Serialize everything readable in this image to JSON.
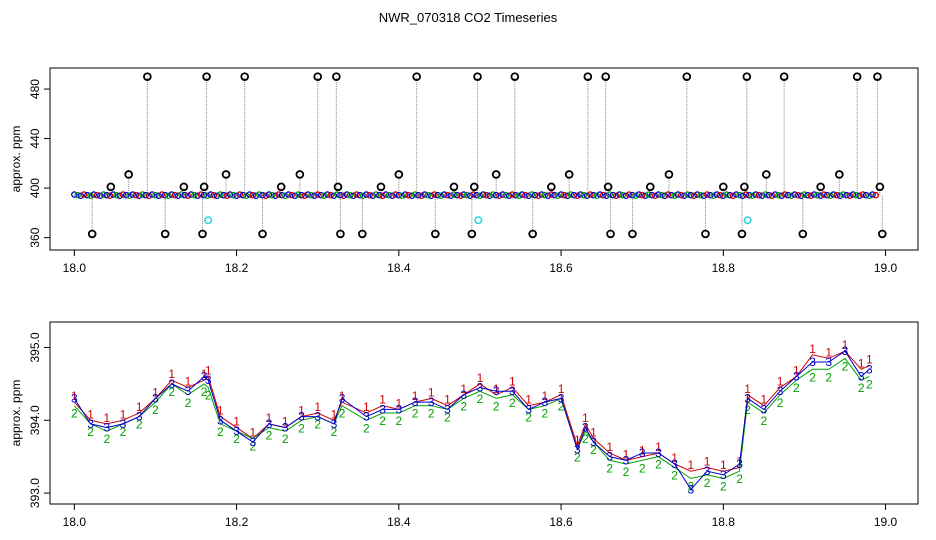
{
  "title": "NWR_070318  CO2 Timeseries",
  "colors": {
    "ch1": "#d00000",
    "ch2": "#00a000",
    "ch3": "#0000c8",
    "outlier": "#000000",
    "flagged": "#30d8e0",
    "trace": "#888888"
  },
  "chart_data": [
    {
      "type": "scatter",
      "ylabel": "approx. ppm",
      "xlim": [
        17.97,
        19.04
      ],
      "ylim": [
        350,
        497
      ],
      "xticks": [
        18.0,
        18.2,
        18.4,
        18.6,
        18.8,
        19.0
      ],
      "xtick_labels": [
        "18.0",
        "18.2",
        "18.4",
        "18.6",
        "18.8",
        "19.0"
      ],
      "yticks": [
        360,
        400,
        440,
        480
      ],
      "ytick_labels": [
        "360",
        "400",
        "440",
        "480"
      ],
      "outliers": [
        {
          "x": 18.022,
          "y": 363
        },
        {
          "x": 18.045,
          "y": 401
        },
        {
          "x": 18.067,
          "y": 411
        },
        {
          "x": 18.09,
          "y": 490
        },
        {
          "x": 18.112,
          "y": 363
        },
        {
          "x": 18.135,
          "y": 401
        },
        {
          "x": 18.158,
          "y": 363
        },
        {
          "x": 18.16,
          "y": 401
        },
        {
          "x": 18.163,
          "y": 490
        },
        {
          "x": 18.187,
          "y": 411
        },
        {
          "x": 18.21,
          "y": 490
        },
        {
          "x": 18.232,
          "y": 363
        },
        {
          "x": 18.255,
          "y": 401
        },
        {
          "x": 18.278,
          "y": 411
        },
        {
          "x": 18.3,
          "y": 490
        },
        {
          "x": 18.323,
          "y": 490
        },
        {
          "x": 18.325,
          "y": 401
        },
        {
          "x": 18.328,
          "y": 363
        },
        {
          "x": 18.355,
          "y": 363
        },
        {
          "x": 18.378,
          "y": 401
        },
        {
          "x": 18.4,
          "y": 411
        },
        {
          "x": 18.422,
          "y": 490
        },
        {
          "x": 18.445,
          "y": 363
        },
        {
          "x": 18.468,
          "y": 401
        },
        {
          "x": 18.49,
          "y": 363
        },
        {
          "x": 18.493,
          "y": 401
        },
        {
          "x": 18.497,
          "y": 490
        },
        {
          "x": 18.52,
          "y": 411
        },
        {
          "x": 18.543,
          "y": 490
        },
        {
          "x": 18.565,
          "y": 363
        },
        {
          "x": 18.588,
          "y": 401
        },
        {
          "x": 18.61,
          "y": 411
        },
        {
          "x": 18.633,
          "y": 490
        },
        {
          "x": 18.655,
          "y": 490
        },
        {
          "x": 18.658,
          "y": 401
        },
        {
          "x": 18.661,
          "y": 363
        },
        {
          "x": 18.688,
          "y": 363
        },
        {
          "x": 18.71,
          "y": 401
        },
        {
          "x": 18.733,
          "y": 411
        },
        {
          "x": 18.755,
          "y": 490
        },
        {
          "x": 18.778,
          "y": 363
        },
        {
          "x": 18.8,
          "y": 401
        },
        {
          "x": 18.823,
          "y": 363
        },
        {
          "x": 18.826,
          "y": 401
        },
        {
          "x": 18.829,
          "y": 490
        },
        {
          "x": 18.853,
          "y": 411
        },
        {
          "x": 18.875,
          "y": 490
        },
        {
          "x": 18.898,
          "y": 363
        },
        {
          "x": 18.92,
          "y": 401
        },
        {
          "x": 18.943,
          "y": 411
        },
        {
          "x": 18.965,
          "y": 490
        },
        {
          "x": 18.99,
          "y": 490
        },
        {
          "x": 18.993,
          "y": 401
        },
        {
          "x": 18.996,
          "y": 363
        }
      ],
      "flagged": [
        {
          "x": 18.165,
          "y": 374
        },
        {
          "x": 18.498,
          "y": 374
        },
        {
          "x": 18.83,
          "y": 374
        }
      ],
      "baseline_ppm": 394.3
    },
    {
      "type": "line",
      "ylabel": "approx. ppm",
      "xlim": [
        17.97,
        19.04
      ],
      "ylim": [
        392.85,
        395.35
      ],
      "xticks": [
        18.0,
        18.2,
        18.4,
        18.6,
        18.8,
        19.0
      ],
      "xtick_labels": [
        "18.0",
        "18.2",
        "18.4",
        "18.6",
        "18.8",
        "19.0"
      ],
      "yticks": [
        393.0,
        394.0,
        395.0
      ],
      "ytick_labels": [
        "393.0",
        "394.0",
        "395.0"
      ],
      "x": [
        18.0,
        18.02,
        18.04,
        18.06,
        18.08,
        18.1,
        18.12,
        18.14,
        18.16,
        18.165,
        18.18,
        18.2,
        18.22,
        18.24,
        18.26,
        18.28,
        18.3,
        18.32,
        18.33,
        18.36,
        18.38,
        18.4,
        18.42,
        18.44,
        18.46,
        18.48,
        18.5,
        18.52,
        18.54,
        18.56,
        18.58,
        18.6,
        18.62,
        18.63,
        18.64,
        18.66,
        18.68,
        18.7,
        18.72,
        18.74,
        18.76,
        18.78,
        18.8,
        18.82,
        18.83,
        18.85,
        18.87,
        18.89,
        18.91,
        18.93,
        18.95,
        18.97,
        18.98
      ],
      "series": [
        {
          "name": "1",
          "values": [
            394.25,
            394.0,
            393.95,
            394.0,
            394.1,
            394.3,
            394.55,
            394.45,
            394.55,
            394.6,
            394.05,
            393.9,
            393.75,
            393.95,
            393.9,
            394.05,
            394.1,
            394.0,
            394.25,
            394.1,
            394.2,
            394.15,
            394.25,
            394.3,
            394.2,
            394.35,
            394.5,
            394.35,
            394.45,
            394.2,
            394.25,
            394.35,
            393.65,
            393.95,
            393.75,
            393.55,
            393.45,
            393.5,
            393.55,
            393.4,
            393.3,
            393.35,
            393.3,
            393.35,
            394.35,
            394.2,
            394.45,
            394.6,
            394.9,
            394.85,
            394.95,
            394.7,
            394.75
          ]
        },
        {
          "name": "2",
          "values": [
            394.2,
            393.95,
            393.85,
            393.95,
            394.05,
            394.25,
            394.5,
            394.35,
            394.5,
            394.45,
            393.95,
            393.85,
            393.75,
            393.9,
            393.85,
            394.0,
            394.05,
            393.95,
            394.2,
            394.0,
            394.1,
            394.1,
            394.2,
            394.2,
            394.15,
            394.3,
            394.4,
            394.3,
            394.35,
            394.15,
            394.2,
            394.3,
            393.6,
            393.85,
            393.7,
            393.45,
            393.4,
            393.45,
            393.5,
            393.35,
            393.2,
            393.25,
            393.2,
            393.3,
            394.25,
            394.1,
            394.35,
            394.55,
            394.7,
            394.7,
            394.85,
            394.55,
            394.6
          ]
        },
        {
          "name": "3",
          "values": [
            394.3,
            393.95,
            393.9,
            393.95,
            394.05,
            394.3,
            394.5,
            394.4,
            394.6,
            394.55,
            394.0,
            393.85,
            393.7,
            393.95,
            393.9,
            394.05,
            394.05,
            393.95,
            394.3,
            394.05,
            394.15,
            394.15,
            394.25,
            394.25,
            394.15,
            394.35,
            394.45,
            394.4,
            394.4,
            394.15,
            394.25,
            394.3,
            393.6,
            393.9,
            393.7,
            393.5,
            393.45,
            393.55,
            393.55,
            393.4,
            393.05,
            393.3,
            393.25,
            393.4,
            394.3,
            394.15,
            394.4,
            394.6,
            394.8,
            394.8,
            394.95,
            394.6,
            394.7
          ]
        }
      ]
    }
  ]
}
